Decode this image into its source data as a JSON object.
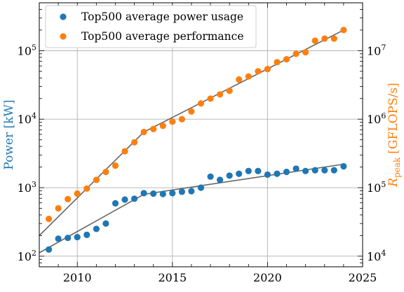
{
  "chart_data": {
    "type": "scatter",
    "x_axis": {
      "range": [
        2008,
        2025
      ],
      "ticks": [
        2010,
        2015,
        2020,
        2025
      ],
      "tick_labels": [
        "2010",
        "2015",
        "2020",
        "2025"
      ]
    },
    "y_left": {
      "label": "Power [kW]",
      "scale": "log",
      "range": [
        70,
        500000
      ],
      "ticks": [
        100,
        1000,
        10000,
        100000
      ],
      "tick_base": "10",
      "tick_exponents": [
        "2",
        "3",
        "4",
        "5"
      ],
      "color": "#1f77b4"
    },
    "y_right": {
      "label_symbol": "R",
      "label_subscript": "peak",
      "label_unit": "[GFLOPS/s]",
      "scale": "log",
      "range": [
        7000,
        50000000
      ],
      "ticks": [
        10000,
        100000,
        1000000,
        10000000
      ],
      "tick_base": "10",
      "tick_exponents": [
        "4",
        "5",
        "6",
        "7"
      ],
      "color": "#ff7f0e"
    },
    "grid": true,
    "legend": {
      "placement": "top-left",
      "entries": [
        {
          "label": "Top500 average power usage",
          "color": "#1f77b4"
        },
        {
          "label": "Top500 average performance",
          "color": "#ff7f0e"
        }
      ]
    },
    "series": [
      {
        "name": "Top500 average power usage",
        "axis": "left",
        "color": "#1f77b4",
        "x": [
          2008.5,
          2009.0,
          2009.5,
          2010.0,
          2010.5,
          2011.0,
          2011.5,
          2012.0,
          2012.5,
          2013.0,
          2013.5,
          2014.0,
          2014.5,
          2015.0,
          2015.5,
          2016.0,
          2016.5,
          2017.0,
          2017.5,
          2018.0,
          2018.5,
          2019.0,
          2019.5,
          2020.0,
          2020.5,
          2021.0,
          2021.5,
          2022.0,
          2022.5,
          2023.0,
          2023.5,
          2024.0
        ],
        "y": [
          125,
          180,
          185,
          190,
          205,
          250,
          300,
          590,
          670,
          690,
          830,
          820,
          810,
          830,
          870,
          890,
          1000,
          1450,
          1300,
          1500,
          1600,
          1750,
          1750,
          1550,
          1600,
          1700,
          1900,
          1750,
          1800,
          1800,
          1800,
          2050
        ]
      },
      {
        "name": "Top500 average performance",
        "axis": "right",
        "color": "#ff7f0e",
        "x": [
          2008.5,
          2009.0,
          2009.5,
          2010.0,
          2010.5,
          2011.0,
          2011.5,
          2012.0,
          2012.5,
          2013.0,
          2013.5,
          2014.0,
          2014.5,
          2015.0,
          2015.5,
          2016.0,
          2016.5,
          2017.0,
          2017.5,
          2018.0,
          2018.5,
          2019.0,
          2019.5,
          2020.0,
          2020.5,
          2021.0,
          2021.5,
          2022.0,
          2022.5,
          2023.0,
          2023.5,
          2024.0
        ],
        "y": [
          35000,
          50000,
          68000,
          82000,
          97000,
          130000,
          170000,
          210000,
          340000,
          460000,
          650000,
          720000,
          800000,
          920000,
          1000000,
          1300000,
          1700000,
          2000000,
          2300000,
          2600000,
          3800000,
          4200000,
          5000000,
          5400000,
          6800000,
          7500000,
          9000000,
          9500000,
          14000000,
          15000000,
          15000000,
          20000000
        ]
      }
    ],
    "trend_lines": [
      {
        "axis": "left",
        "color": "#666666",
        "x": [
          2008.0,
          2013.5,
          2024.0
        ],
        "y": [
          112,
          800,
          2200
        ]
      },
      {
        "axis": "right",
        "color": "#666666",
        "x": [
          2008.0,
          2013.5,
          2024.0
        ],
        "y": [
          20000,
          650000,
          20000000
        ]
      }
    ]
  }
}
